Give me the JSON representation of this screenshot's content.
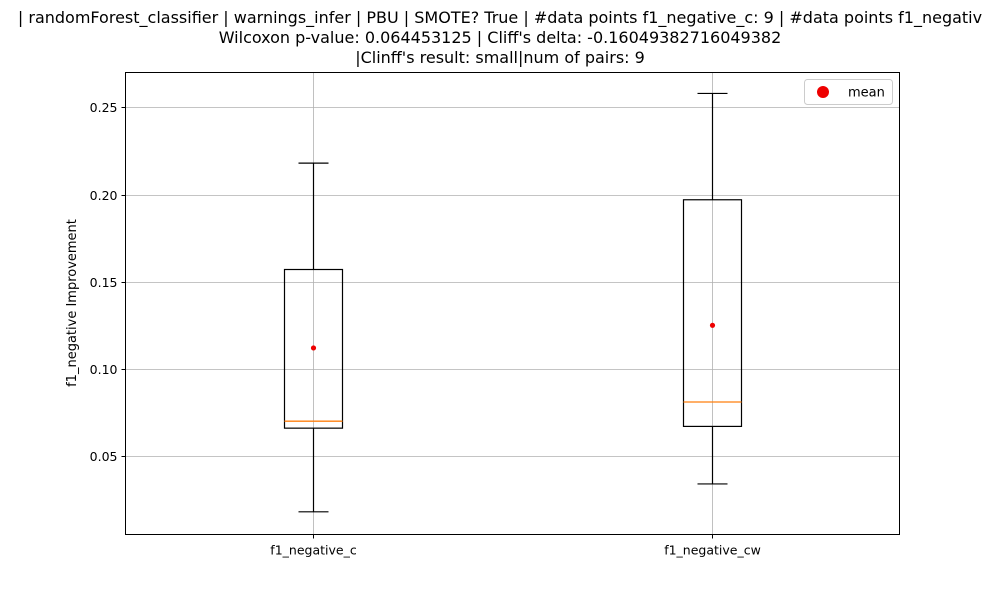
{
  "chart_data": {
    "type": "box",
    "title_lines": [
      "| randomForest_classifier | warnings_infer | PBU | SMOTE? True | #data points f1_negative_c: 9 | #data points f1_negativ",
      "Wilcoxon p-value: 0.064453125 | Cliff's delta: -0.16049382716049382",
      "|Clinff's result: small|num of pairs: 9"
    ],
    "ylabel": "f1_negative Improvement",
    "xlabel": "",
    "ylim": [
      0.005,
      0.27
    ],
    "yticks": [
      0.05,
      0.1,
      0.15,
      0.2,
      0.25
    ],
    "ytick_labels": [
      "0.05",
      "0.10",
      "0.15",
      "0.20",
      "0.25"
    ],
    "grid": true,
    "legend": {
      "placement": "top-right",
      "entries": [
        {
          "label": "mean",
          "color": "#ee0000"
        }
      ]
    },
    "colors": {
      "box": "#000000",
      "median": "#ff7f0e",
      "mean": "#ee0000",
      "grid": "#b0b0b0"
    },
    "boxes": [
      {
        "category": "f1_negative_c",
        "whisker_low": 0.018,
        "q1": 0.066,
        "median": 0.07,
        "q3": 0.157,
        "whisker_high": 0.218,
        "mean": 0.112
      },
      {
        "category": "f1_negative_cw",
        "whisker_low": 0.034,
        "q1": 0.067,
        "median": 0.081,
        "q3": 0.197,
        "whisker_high": 0.258,
        "mean": 0.125
      }
    ]
  }
}
